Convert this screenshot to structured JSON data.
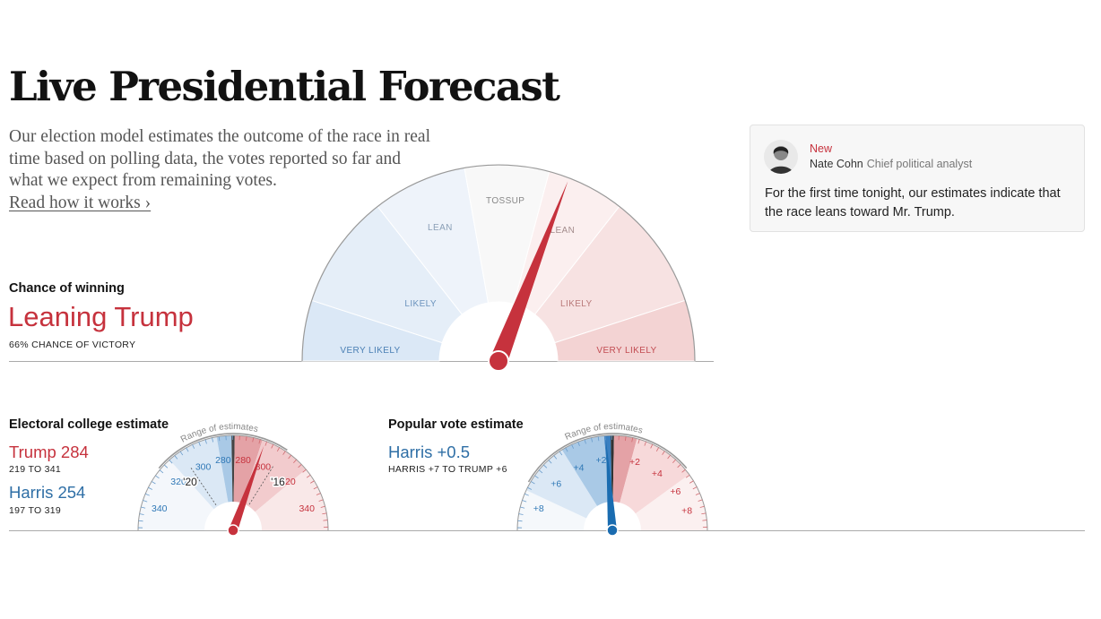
{
  "header": {
    "title": "Live Presidential Forecast",
    "intro": "Our election model estimates the outcome of the race in real time based on polling data, the votes reported so far and what we expect from remaining votes.",
    "read_more": "Read how it works ›"
  },
  "update_card": {
    "badge": "New",
    "author": "Nate Cohn",
    "role": "Chief political analyst",
    "text": "For the first time tonight, our estimates indicate that the race leans toward Mr. Trump."
  },
  "chance": {
    "heading": "Chance of winning",
    "headline": "Leaning Trump",
    "sub": "66% CHANCE OF VICTORY"
  },
  "electoral": {
    "heading": "Electoral college estimate",
    "trump_label": "Trump 284",
    "trump_range": "219 TO 341",
    "harris_label": "Harris 254",
    "harris_range": "197 TO 319"
  },
  "popular": {
    "heading": "Popular vote estimate",
    "label": "Harris +0.5",
    "range": "HARRIS +7 TO TRUMP +6"
  },
  "colors": {
    "trump": "#c6323d",
    "harris": "#2f6fa6",
    "needle_red": "#c6323d",
    "needle_blue": "#1a6cb0"
  },
  "chart_data": [
    {
      "type": "gauge",
      "chart": "chance-of-winning",
      "bands": [
        {
          "label": "VERY LIKELY",
          "side": "harris"
        },
        {
          "label": "LIKELY",
          "side": "harris"
        },
        {
          "label": "LEAN",
          "side": "harris"
        },
        {
          "label": "TOSSUP",
          "side": "neutral"
        },
        {
          "label": "LEAN",
          "side": "trump"
        },
        {
          "label": "LIKELY",
          "side": "trump"
        },
        {
          "label": "VERY LIKELY",
          "side": "trump"
        }
      ],
      "trump_win_probability": 0.66
    },
    {
      "type": "gauge",
      "chart": "electoral-college",
      "range_label": "Range of estimates",
      "estimate_trump_ev": 284,
      "range_trump_ev": [
        219,
        341
      ],
      "ticks": [
        {
          "label": "340",
          "side": "harris"
        },
        {
          "label": "320",
          "side": "harris"
        },
        {
          "label": "300",
          "side": "harris"
        },
        {
          "label": "280",
          "side": "harris"
        },
        {
          "label": "280",
          "side": "trump"
        },
        {
          "label": "300",
          "side": "trump"
        },
        {
          "label": "320",
          "side": "trump"
        },
        {
          "label": "340",
          "side": "trump"
        }
      ],
      "past_results": [
        {
          "label": "'20",
          "trump_ev": 232
        },
        {
          "label": "'16",
          "trump_ev": 304
        }
      ]
    },
    {
      "type": "gauge",
      "chart": "popular-vote",
      "range_label": "Range of estimates",
      "estimate_margin": -0.5,
      "range_margin": [
        -7,
        6
      ],
      "ticks": [
        {
          "label": "+8",
          "side": "harris"
        },
        {
          "label": "+6",
          "side": "harris"
        },
        {
          "label": "+4",
          "side": "harris"
        },
        {
          "label": "+2",
          "side": "harris"
        },
        {
          "label": "+2",
          "side": "trump"
        },
        {
          "label": "+4",
          "side": "trump"
        },
        {
          "label": "+6",
          "side": "trump"
        },
        {
          "label": "+8",
          "side": "trump"
        }
      ]
    }
  ]
}
